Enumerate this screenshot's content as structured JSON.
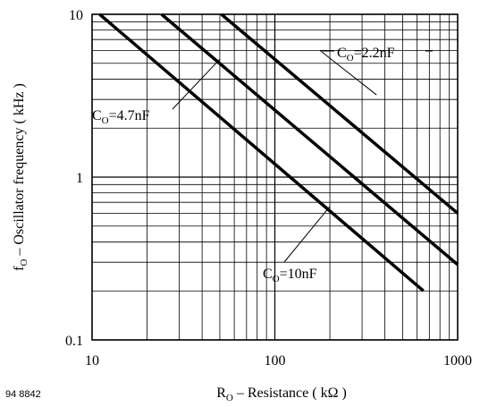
{
  "chart_data": {
    "type": "line",
    "xscale": "log",
    "yscale": "log",
    "xlim": [
      10,
      1000
    ],
    "ylim": [
      0.1,
      10
    ],
    "grid": true,
    "xlabel": {
      "main": "R",
      "sub": "O",
      "rest": " – Resistance ( kΩ )"
    },
    "ylabel": {
      "main": "f",
      "sub": "O",
      "rest": " – Oscillator frequency ( kHz )"
    },
    "x_ticks": [
      {
        "value": 10,
        "label": "10"
      },
      {
        "value": 100,
        "label": "100"
      },
      {
        "value": 1000,
        "label": "1000"
      }
    ],
    "y_ticks": [
      {
        "value": 0.1,
        "label": "0.1"
      },
      {
        "value": 1,
        "label": "1"
      },
      {
        "value": 10,
        "label": "10"
      }
    ],
    "series": [
      {
        "key": "c22",
        "x": [
          51,
          1000
        ],
        "y": [
          10,
          0.6
        ]
      },
      {
        "key": "c47",
        "x": [
          24,
          1000
        ],
        "y": [
          10,
          0.29
        ]
      },
      {
        "key": "c10",
        "x": [
          11,
          650
        ],
        "y": [
          10,
          0.2
        ]
      }
    ],
    "annotations": [
      {
        "key": "c22",
        "main": "C",
        "sub": "O",
        "rest": "=2.2nF",
        "anchor_x": 360,
        "anchor_y": 3.2
      },
      {
        "key": "c47",
        "main": "C",
        "sub": "O",
        "rest": "=4.7nF",
        "anchor_x": 50,
        "anchor_y": 5.3
      },
      {
        "key": "c10",
        "main": "C",
        "sub": "O",
        "rest": "=10nF",
        "anchor_x": 200,
        "anchor_y": 0.66
      }
    ],
    "figure_code": "94 8842"
  }
}
